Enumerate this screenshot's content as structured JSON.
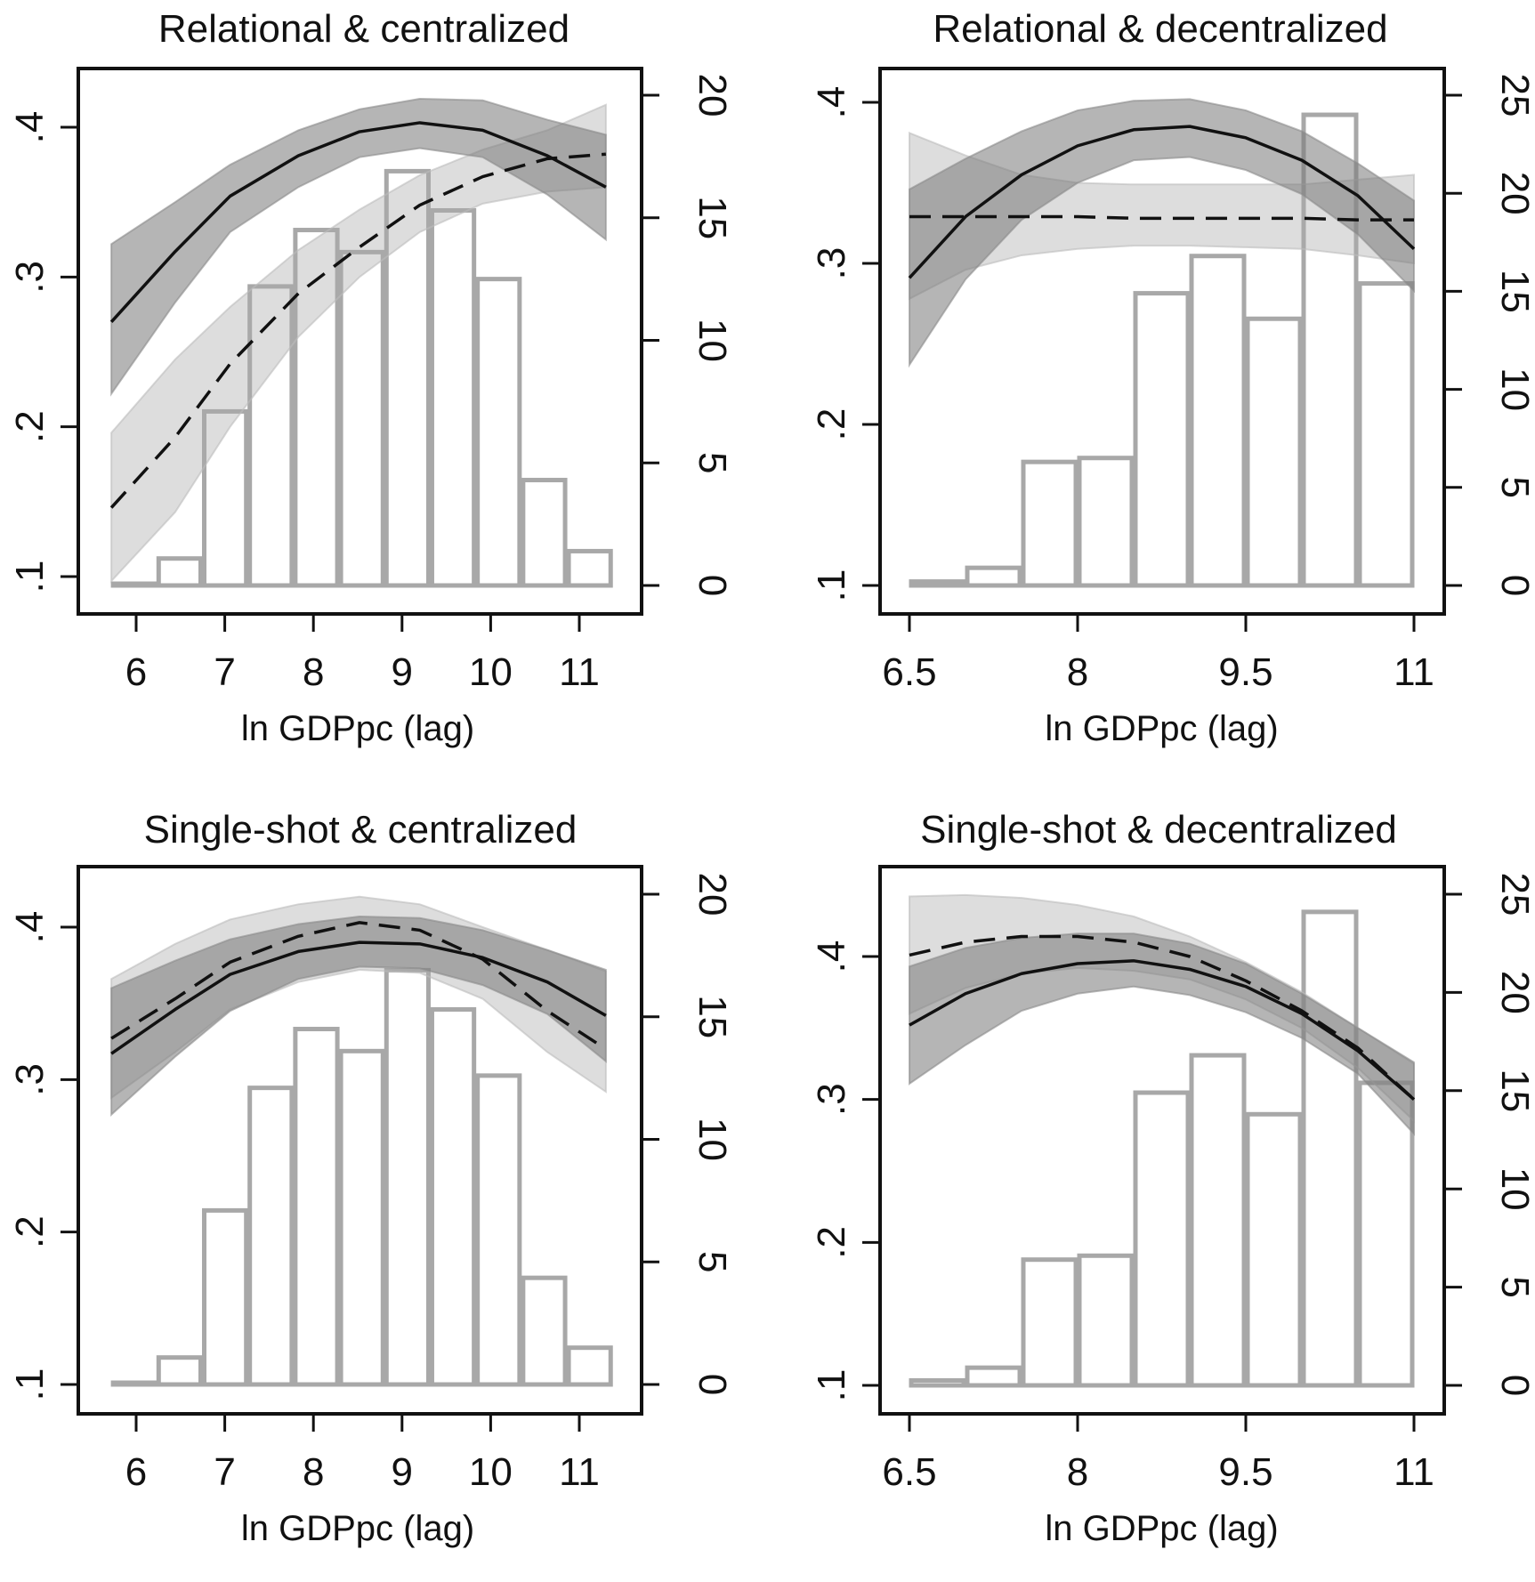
{
  "colors": {
    "line": "#111111",
    "band_dark": "#787878",
    "band_light": "#aaaaaa",
    "bar_stroke": "#a8a8a8",
    "bar_fill": "#ffffff"
  },
  "chart_data": [
    {
      "type": "line",
      "title": "Relational & centralized",
      "xlabel": "ln GDPpc (lag)",
      "xticks": [
        6,
        7,
        8,
        9,
        10,
        11
      ],
      "xtick_labels": [
        "6",
        "7",
        "8",
        "9",
        "10",
        "11"
      ],
      "yticks": [
        0.1,
        0.2,
        0.3,
        0.4
      ],
      "ytick_labels": [
        ".1",
        ".2",
        ".3",
        ".4"
      ],
      "y2ticks": [
        0,
        5,
        10,
        15,
        20
      ],
      "y2tick_labels": [
        "0",
        "5",
        "10",
        "15",
        "20"
      ],
      "histogram": {
        "bin_start": 5.72,
        "bin_width": 0.514,
        "values": [
          0,
          1.1,
          7.1,
          12.2,
          14.5,
          13.6,
          16.9,
          15.3,
          12.5,
          4.3,
          1.4
        ]
      },
      "x": [
        5.72,
        6.44,
        7.06,
        7.83,
        8.52,
        9.2,
        9.91,
        10.64,
        11.3
      ],
      "series": [
        {
          "style": "solid",
          "values": [
            0.27,
            0.317,
            0.354,
            0.381,
            0.397,
            0.403,
            0.398,
            0.381,
            0.36
          ],
          "ci_upper": [
            0.322,
            0.35,
            0.375,
            0.398,
            0.412,
            0.419,
            0.418,
            0.405,
            0.395
          ],
          "ci_lower": [
            0.222,
            0.283,
            0.33,
            0.36,
            0.38,
            0.386,
            0.38,
            0.355,
            0.325
          ]
        },
        {
          "style": "dashed",
          "values": [
            0.146,
            0.193,
            0.242,
            0.289,
            0.32,
            0.348,
            0.367,
            0.379,
            0.382
          ],
          "ci_upper": [
            0.196,
            0.245,
            0.28,
            0.318,
            0.345,
            0.368,
            0.385,
            0.398,
            0.415
          ],
          "ci_lower": [
            0.097,
            0.143,
            0.2,
            0.26,
            0.3,
            0.33,
            0.349,
            0.357,
            0.36
          ]
        }
      ]
    },
    {
      "type": "line",
      "title": "Relational & decentralized",
      "xlabel": "ln GDPpc (lag)",
      "xticks": [
        6.5,
        8,
        9.5,
        11
      ],
      "xtick_labels": [
        "6.5",
        "8",
        "9.5",
        "11"
      ],
      "yticks": [
        0.1,
        0.2,
        0.3,
        0.4
      ],
      "ytick_labels": [
        ".1",
        ".2",
        ".3",
        ".4"
      ],
      "y2ticks": [
        0,
        5,
        10,
        15,
        20,
        25
      ],
      "y2tick_labels": [
        "0",
        "5",
        "10",
        "15",
        "20",
        "25"
      ],
      "histogram": {
        "bin_start": 6.5,
        "bin_width": 0.5,
        "values": [
          0.2,
          0.9,
          6.3,
          6.5,
          14.9,
          16.8,
          13.6,
          24.0,
          15.4
        ]
      },
      "x": [
        6.5,
        7,
        7.5,
        8,
        8.5,
        9,
        9.5,
        10,
        10.5,
        11
      ],
      "series": [
        {
          "style": "dashed",
          "values": [
            0.329,
            0.329,
            0.329,
            0.329,
            0.328,
            0.328,
            0.328,
            0.328,
            0.327,
            0.327
          ],
          "ci_upper": [
            0.381,
            0.367,
            0.355,
            0.35,
            0.349,
            0.349,
            0.349,
            0.349,
            0.352,
            0.355
          ],
          "ci_lower": [
            0.278,
            0.296,
            0.305,
            0.309,
            0.311,
            0.311,
            0.31,
            0.309,
            0.305,
            0.3
          ]
        },
        {
          "style": "solid",
          "values": [
            0.291,
            0.329,
            0.355,
            0.373,
            0.383,
            0.385,
            0.378,
            0.364,
            0.342,
            0.309
          ],
          "ci_upper": [
            0.346,
            0.365,
            0.382,
            0.395,
            0.401,
            0.402,
            0.395,
            0.382,
            0.362,
            0.339
          ],
          "ci_lower": [
            0.237,
            0.29,
            0.327,
            0.35,
            0.364,
            0.366,
            0.358,
            0.343,
            0.318,
            0.283
          ]
        }
      ]
    },
    {
      "type": "line",
      "title": "Single-shot & centralized",
      "xlabel": "ln GDPpc (lag)",
      "xticks": [
        6,
        7,
        8,
        9,
        10,
        11
      ],
      "xtick_labels": [
        "6",
        "7",
        "8",
        "9",
        "10",
        "11"
      ],
      "yticks": [
        0.1,
        0.2,
        0.3,
        0.4
      ],
      "ytick_labels": [
        ".1",
        ".2",
        ".3",
        ".4"
      ],
      "y2ticks": [
        0,
        5,
        10,
        15,
        20
      ],
      "y2tick_labels": [
        "0",
        "5",
        "10",
        "15",
        "20"
      ],
      "histogram": {
        "bin_start": 5.72,
        "bin_width": 0.514,
        "values": [
          0,
          1.1,
          7.1,
          12.1,
          14.5,
          13.6,
          16.9,
          15.3,
          12.6,
          4.35,
          1.5
        ]
      },
      "x": [
        5.72,
        6.44,
        7.06,
        7.83,
        8.52,
        9.2,
        9.91,
        10.64,
        11.3
      ],
      "series": [
        {
          "style": "dashed",
          "values": [
            0.327,
            0.353,
            0.377,
            0.394,
            0.403,
            0.398,
            0.379,
            0.345,
            0.32
          ],
          "ci_upper": [
            0.366,
            0.389,
            0.405,
            0.415,
            0.42,
            0.415,
            0.4,
            0.385,
            0.371
          ],
          "ci_lower": [
            0.288,
            0.318,
            0.346,
            0.364,
            0.372,
            0.37,
            0.353,
            0.318,
            0.292
          ]
        },
        {
          "style": "solid",
          "values": [
            0.317,
            0.346,
            0.369,
            0.384,
            0.39,
            0.389,
            0.38,
            0.364,
            0.342
          ],
          "ci_upper": [
            0.36,
            0.378,
            0.392,
            0.402,
            0.407,
            0.406,
            0.398,
            0.385,
            0.372
          ],
          "ci_lower": [
            0.277,
            0.315,
            0.345,
            0.366,
            0.374,
            0.373,
            0.362,
            0.343,
            0.312
          ]
        }
      ]
    },
    {
      "type": "line",
      "title": "Single-shot & decentralized",
      "xlabel": "ln GDPpc (lag)",
      "xticks": [
        6.5,
        8,
        9.5,
        11
      ],
      "xtick_labels": [
        "6.5",
        "8",
        "9.5",
        "11"
      ],
      "yticks": [
        0.1,
        0.2,
        0.3,
        0.4
      ],
      "ytick_labels": [
        ".1",
        ".2",
        ".3",
        ".4"
      ],
      "y2ticks": [
        0,
        5,
        10,
        15,
        20,
        25
      ],
      "y2tick_labels": [
        "0",
        "5",
        "10",
        "15",
        "20",
        "25"
      ],
      "histogram": {
        "bin_start": 6.5,
        "bin_width": 0.5,
        "values": [
          0.25,
          0.9,
          6.4,
          6.6,
          14.9,
          16.8,
          13.8,
          24.1,
          15.4
        ]
      },
      "x": [
        6.5,
        7,
        7.5,
        8,
        8.5,
        9,
        9.5,
        10,
        10.5,
        11
      ],
      "series": [
        {
          "style": "dashed",
          "values": [
            0.401,
            0.41,
            0.414,
            0.414,
            0.41,
            0.4,
            0.383,
            0.362,
            0.336,
            0.3
          ],
          "ci_upper": [
            0.442,
            0.443,
            0.441,
            0.436,
            0.428,
            0.414,
            0.396,
            0.375,
            0.35,
            0.325
          ],
          "ci_lower": [
            0.36,
            0.378,
            0.388,
            0.392,
            0.39,
            0.384,
            0.37,
            0.35,
            0.322,
            0.285
          ]
        },
        {
          "style": "solid",
          "values": [
            0.352,
            0.374,
            0.388,
            0.395,
            0.397,
            0.391,
            0.379,
            0.36,
            0.334,
            0.3
          ],
          "ci_upper": [
            0.393,
            0.406,
            0.413,
            0.416,
            0.416,
            0.409,
            0.395,
            0.374,
            0.35,
            0.326
          ],
          "ci_lower": [
            0.311,
            0.338,
            0.362,
            0.374,
            0.379,
            0.373,
            0.361,
            0.343,
            0.318,
            0.276
          ]
        }
      ]
    }
  ]
}
